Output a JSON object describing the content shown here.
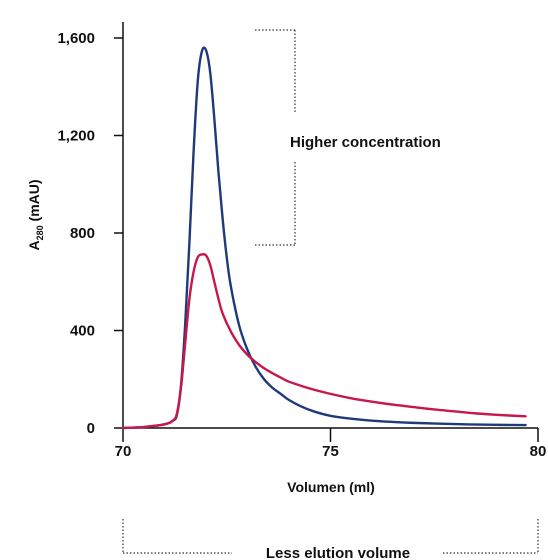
{
  "chart_data": {
    "type": "line",
    "title": "",
    "xlabel": "Volumen (ml)",
    "ylabel": {
      "main": "A",
      "sub": "280",
      "unit": " (mAU)"
    },
    "xlim": [
      70,
      80
    ],
    "ylim": [
      0,
      1600
    ],
    "x_ticks": [
      70,
      75,
      80
    ],
    "x_tick_labels": [
      "70",
      "75",
      "80"
    ],
    "y_ticks": [
      0,
      400,
      800,
      1200,
      1600
    ],
    "y_tick_labels": [
      "0",
      "400",
      "800",
      "1,200",
      "1,600"
    ],
    "grid": false,
    "legend": "none",
    "series": [
      {
        "color": "#1f3a7a",
        "x": [
          70,
          70.5,
          71,
          71.2,
          71.3,
          71.4,
          71.5,
          71.6,
          71.7,
          71.8,
          71.9,
          72.0,
          72.1,
          72.2,
          72.3,
          72.4,
          72.5,
          72.6,
          72.8,
          73.0,
          73.2,
          73.4,
          73.6,
          73.8,
          74.0,
          74.3,
          74.6,
          75.0,
          75.5,
          76.0,
          76.5,
          77.0,
          78.0,
          79.0,
          79.7
        ],
        "y": [
          0,
          4,
          15,
          30,
          55,
          180,
          430,
          760,
          1130,
          1420,
          1545,
          1550,
          1460,
          1270,
          1050,
          860,
          700,
          580,
          420,
          320,
          250,
          200,
          165,
          140,
          115,
          88,
          68,
          50,
          38,
          30,
          25,
          21,
          16,
          13,
          12
        ]
      },
      {
        "color": "#c8174a",
        "x": [
          70,
          70.5,
          71,
          71.2,
          71.3,
          71.4,
          71.5,
          71.6,
          71.7,
          71.8,
          71.9,
          72.0,
          72.1,
          72.2,
          72.3,
          72.4,
          72.6,
          72.8,
          73.0,
          73.2,
          73.4,
          73.6,
          73.8,
          74.0,
          74.5,
          75.0,
          75.5,
          76.0,
          76.5,
          77.0,
          77.5,
          78.0,
          78.5,
          79.0,
          79.7
        ],
        "y": [
          0,
          4,
          15,
          30,
          60,
          170,
          350,
          530,
          640,
          700,
          712,
          708,
          670,
          600,
          530,
          470,
          395,
          340,
          300,
          270,
          245,
          225,
          207,
          190,
          162,
          140,
          122,
          108,
          96,
          86,
          76,
          68,
          60,
          54,
          48
        ]
      }
    ],
    "annotations": {
      "concentration": "Higher concentration",
      "elution": "Less elution volume"
    }
  }
}
